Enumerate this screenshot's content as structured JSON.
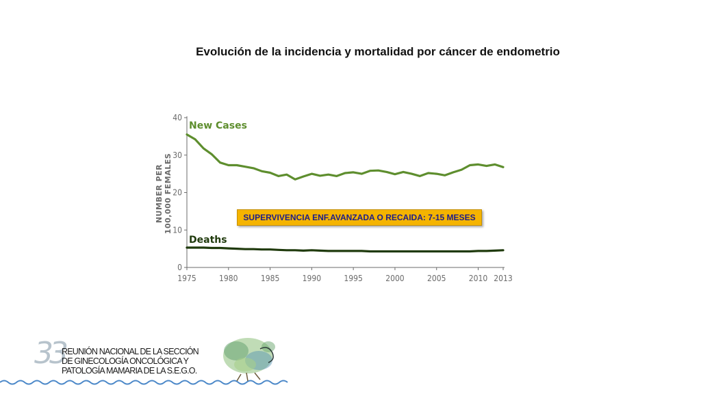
{
  "slide": {
    "title": "Evolución de la incidencia y mortalidad por cáncer de endometrio",
    "callout": "SUPERVIVENCIA ENF.AVANZADA O RECAIDA: 7-15 MESES",
    "logo": {
      "number": "33",
      "lines": [
        "REUNIÓN NACIONAL DE LA SECCIÓN",
        "DE GINECOLOGÍA ONCOLÓGICA Y",
        "PATOLOGÍA MAMARIA DE LA S.E.G.O."
      ]
    }
  },
  "chart_data": {
    "type": "line",
    "ylabel_lines": [
      "NUMBER PER",
      "100,000 FEMALES"
    ],
    "ylim": [
      0,
      40
    ],
    "yticks": [
      0,
      10,
      20,
      30,
      40
    ],
    "xlim": [
      1975,
      2013
    ],
    "xticks": [
      1975,
      1980,
      1985,
      1990,
      1995,
      2000,
      2005,
      2010,
      2013
    ],
    "x": [
      1975,
      1976,
      1977,
      1978,
      1979,
      1980,
      1981,
      1982,
      1983,
      1984,
      1985,
      1986,
      1987,
      1988,
      1989,
      1990,
      1991,
      1992,
      1993,
      1994,
      1995,
      1996,
      1997,
      1998,
      1999,
      2000,
      2001,
      2002,
      2003,
      2004,
      2005,
      2006,
      2007,
      2008,
      2009,
      2010,
      2011,
      2012,
      2013
    ],
    "series": [
      {
        "name": "New Cases",
        "color": "#5e8e2e",
        "values": [
          35.5,
          34.2,
          31.8,
          30.2,
          28.0,
          27.3,
          27.3,
          26.9,
          26.5,
          25.7,
          25.3,
          24.4,
          24.8,
          23.5,
          24.3,
          25.0,
          24.5,
          24.8,
          24.4,
          25.2,
          25.4,
          25.0,
          25.8,
          25.9,
          25.5,
          24.9,
          25.5,
          25.0,
          24.4,
          25.2,
          25.0,
          24.6,
          25.4,
          26.1,
          27.3,
          27.5,
          27.1,
          27.5,
          26.8
        ]
      },
      {
        "name": "Deaths",
        "color": "#1f3a0c",
        "values": [
          5.3,
          5.3,
          5.3,
          5.2,
          5.2,
          5.1,
          5.0,
          4.9,
          4.9,
          4.8,
          4.8,
          4.7,
          4.6,
          4.6,
          4.5,
          4.6,
          4.5,
          4.4,
          4.4,
          4.4,
          4.4,
          4.4,
          4.3,
          4.3,
          4.3,
          4.3,
          4.3,
          4.3,
          4.3,
          4.3,
          4.3,
          4.3,
          4.3,
          4.3,
          4.3,
          4.4,
          4.4,
          4.5,
          4.6
        ]
      }
    ]
  }
}
